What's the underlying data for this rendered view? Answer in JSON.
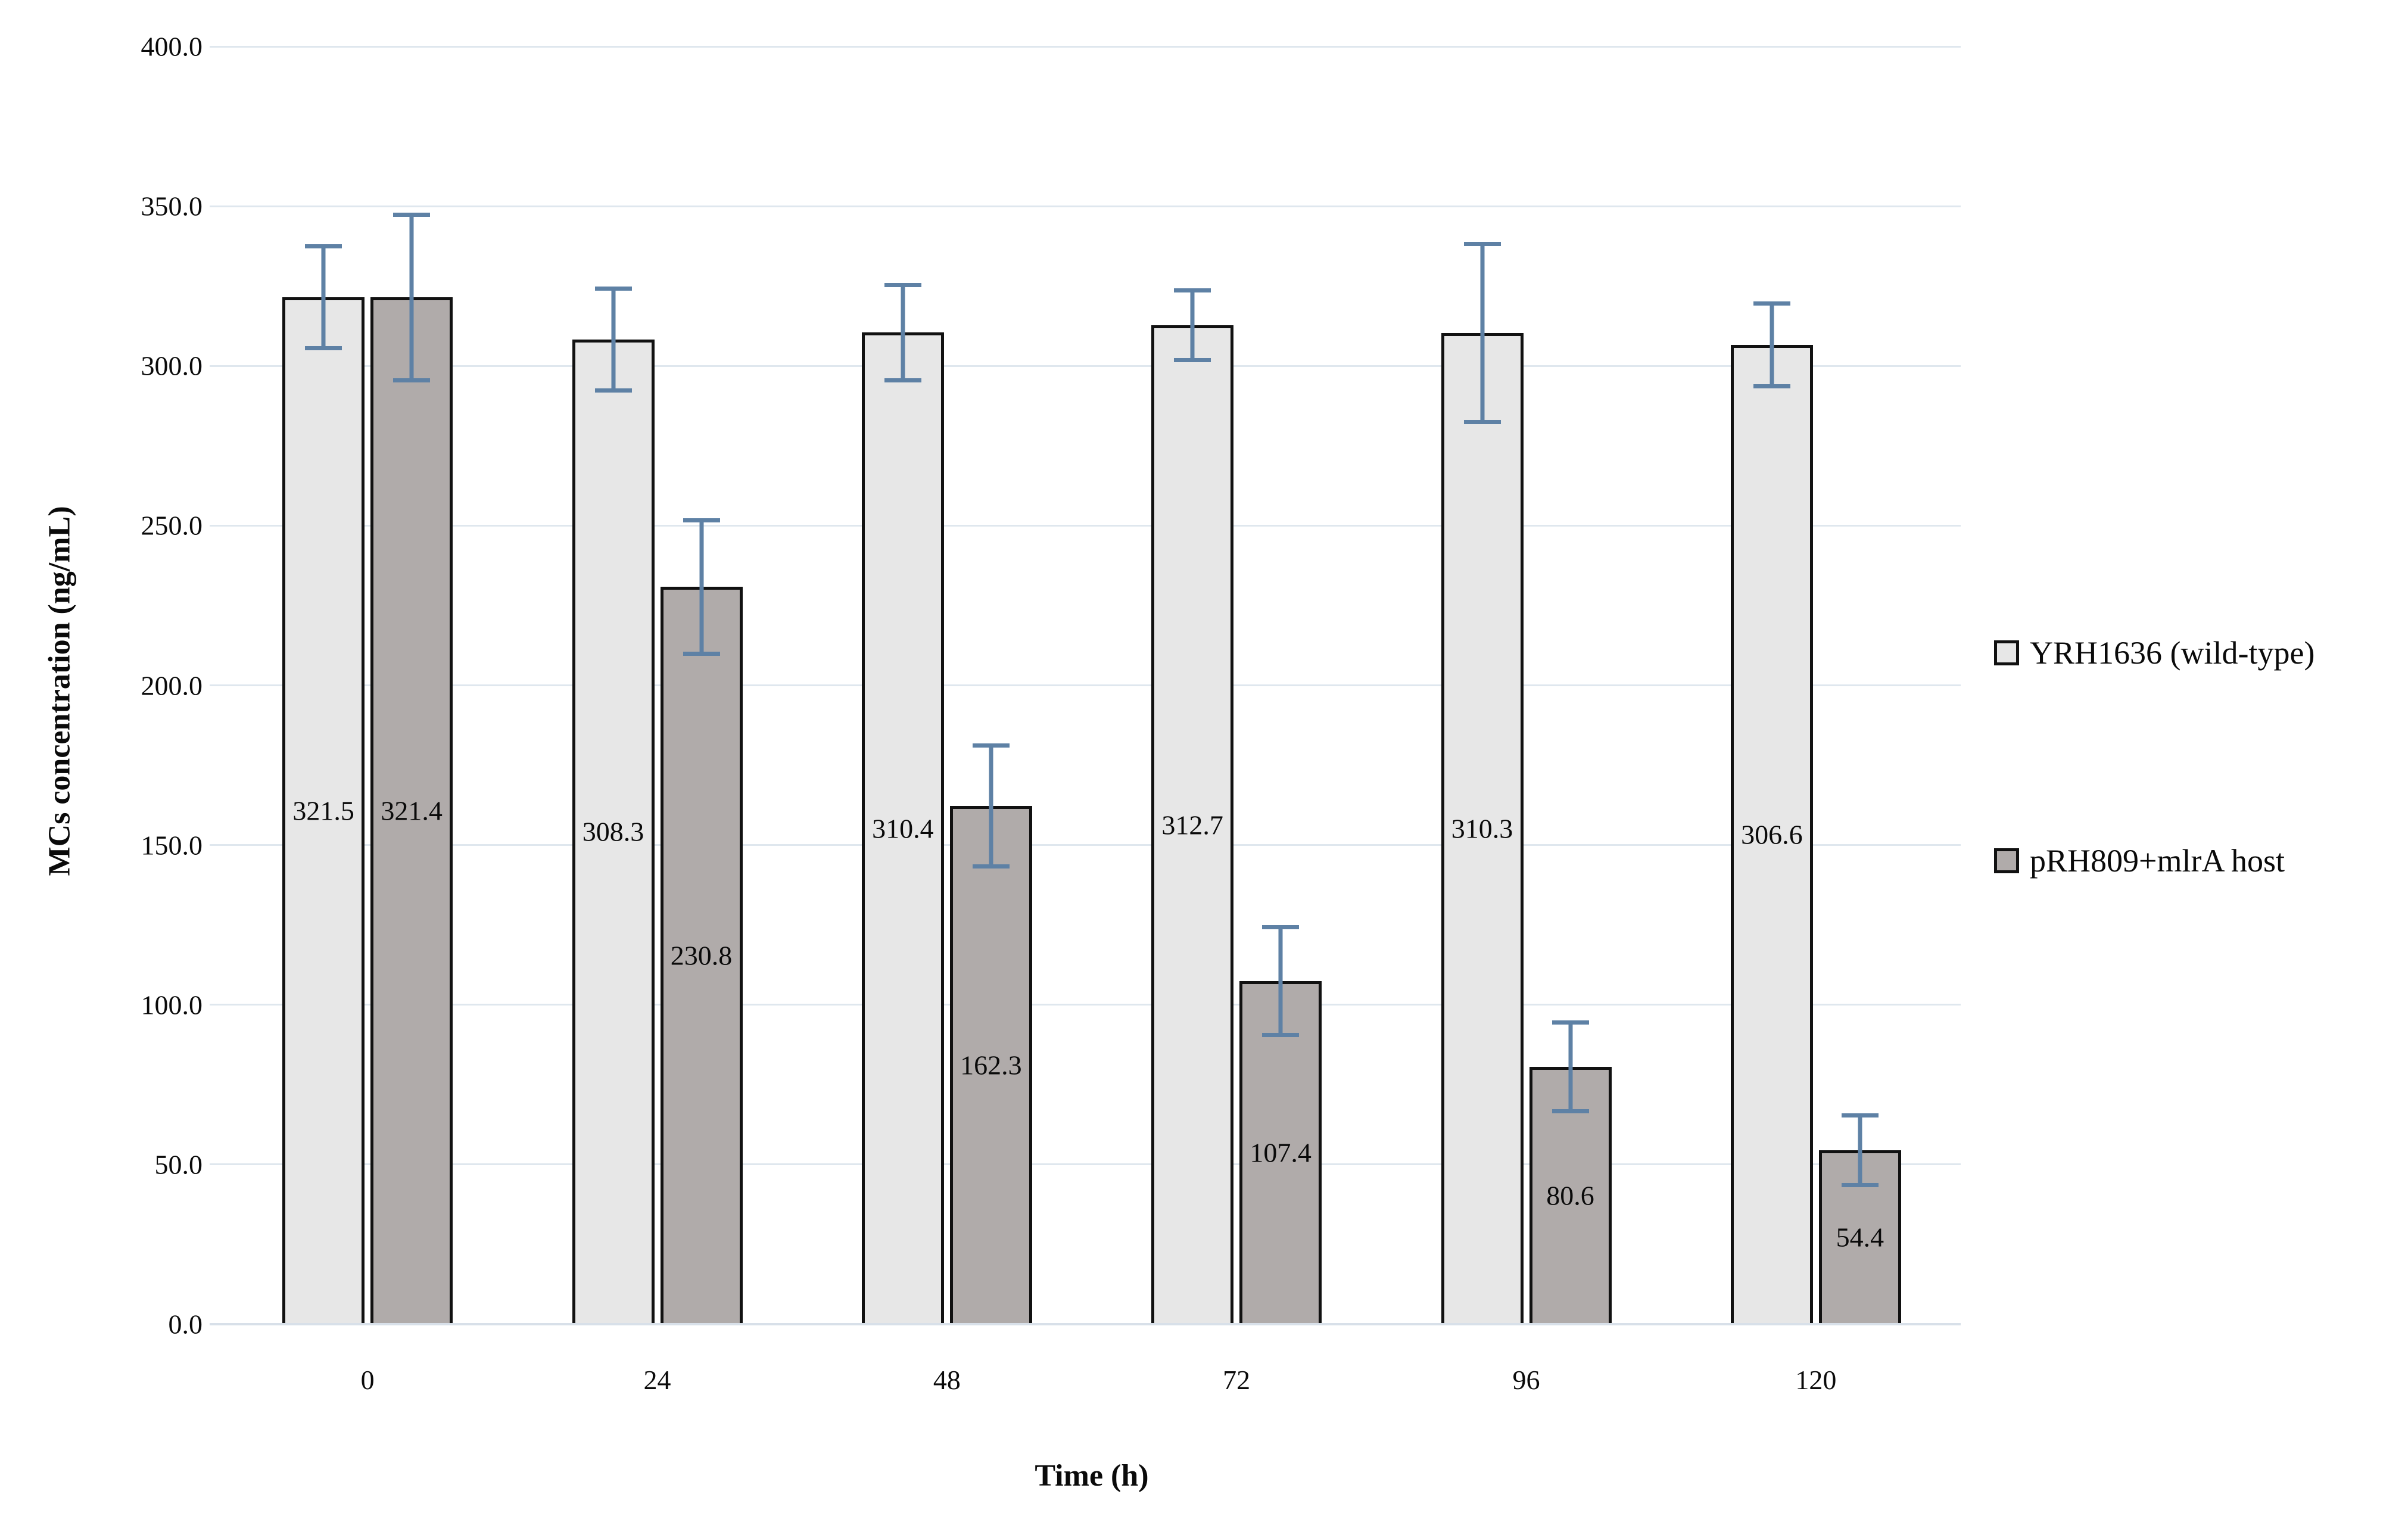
{
  "figure": {
    "y_axis_title": "MCs concentration (ng/mL)",
    "x_axis_title": "Time (h)"
  },
  "legend": {
    "position": "right",
    "items": [
      {
        "label": "YRH1636 (wild-type)",
        "swatch_name": "wild-type-swatch",
        "color": "#e7e7e7"
      },
      {
        "label": "pRH809+mlrA host",
        "swatch_name": "mlrA-host-swatch",
        "color": "#b0abaa"
      }
    ]
  },
  "chart_data": {
    "type": "bar",
    "title": "",
    "xlabel": "Time (h)",
    "ylabel": "MCs concentration (ng/mL)",
    "categories": [
      "0",
      "24",
      "48",
      "72",
      "96",
      "120"
    ],
    "y_tick_labels": [
      "0.0",
      "50.0",
      "100.0",
      "150.0",
      "200.0",
      "250.0",
      "300.0",
      "350.0",
      "400.0"
    ],
    "ylim": [
      0,
      400
    ],
    "y_tick_step": 50,
    "grid": true,
    "legend_position": "right",
    "series": [
      {
        "name": "YRH1636 (wild-type)",
        "color": "#e7e7e7",
        "values": [
          321.5,
          308.3,
          310.4,
          312.7,
          310.3,
          306.6
        ],
        "data_labels": [
          "321.5",
          "308.3",
          "310.4",
          "312.7",
          "310.3",
          "306.6"
        ],
        "errors": [
          16,
          16,
          15,
          11,
          28,
          13
        ]
      },
      {
        "name": "pRH809+mlrA host",
        "color": "#b0abaa",
        "values": [
          321.4,
          230.8,
          162.3,
          107.4,
          80.6,
          54.4
        ],
        "data_labels": [
          "321.4",
          "230.8",
          "162.3",
          "107.4",
          "80.6",
          "54.4"
        ],
        "errors": [
          26,
          21,
          19,
          17,
          14,
          11
        ]
      }
    ],
    "colors": {
      "error_bar": "#5e81a5",
      "bar_border": "#111111",
      "gridline": "#dfe7ee",
      "axis_line": "#d8e0e9",
      "background": "#ffffff",
      "text": "#0a0a0a"
    }
  }
}
